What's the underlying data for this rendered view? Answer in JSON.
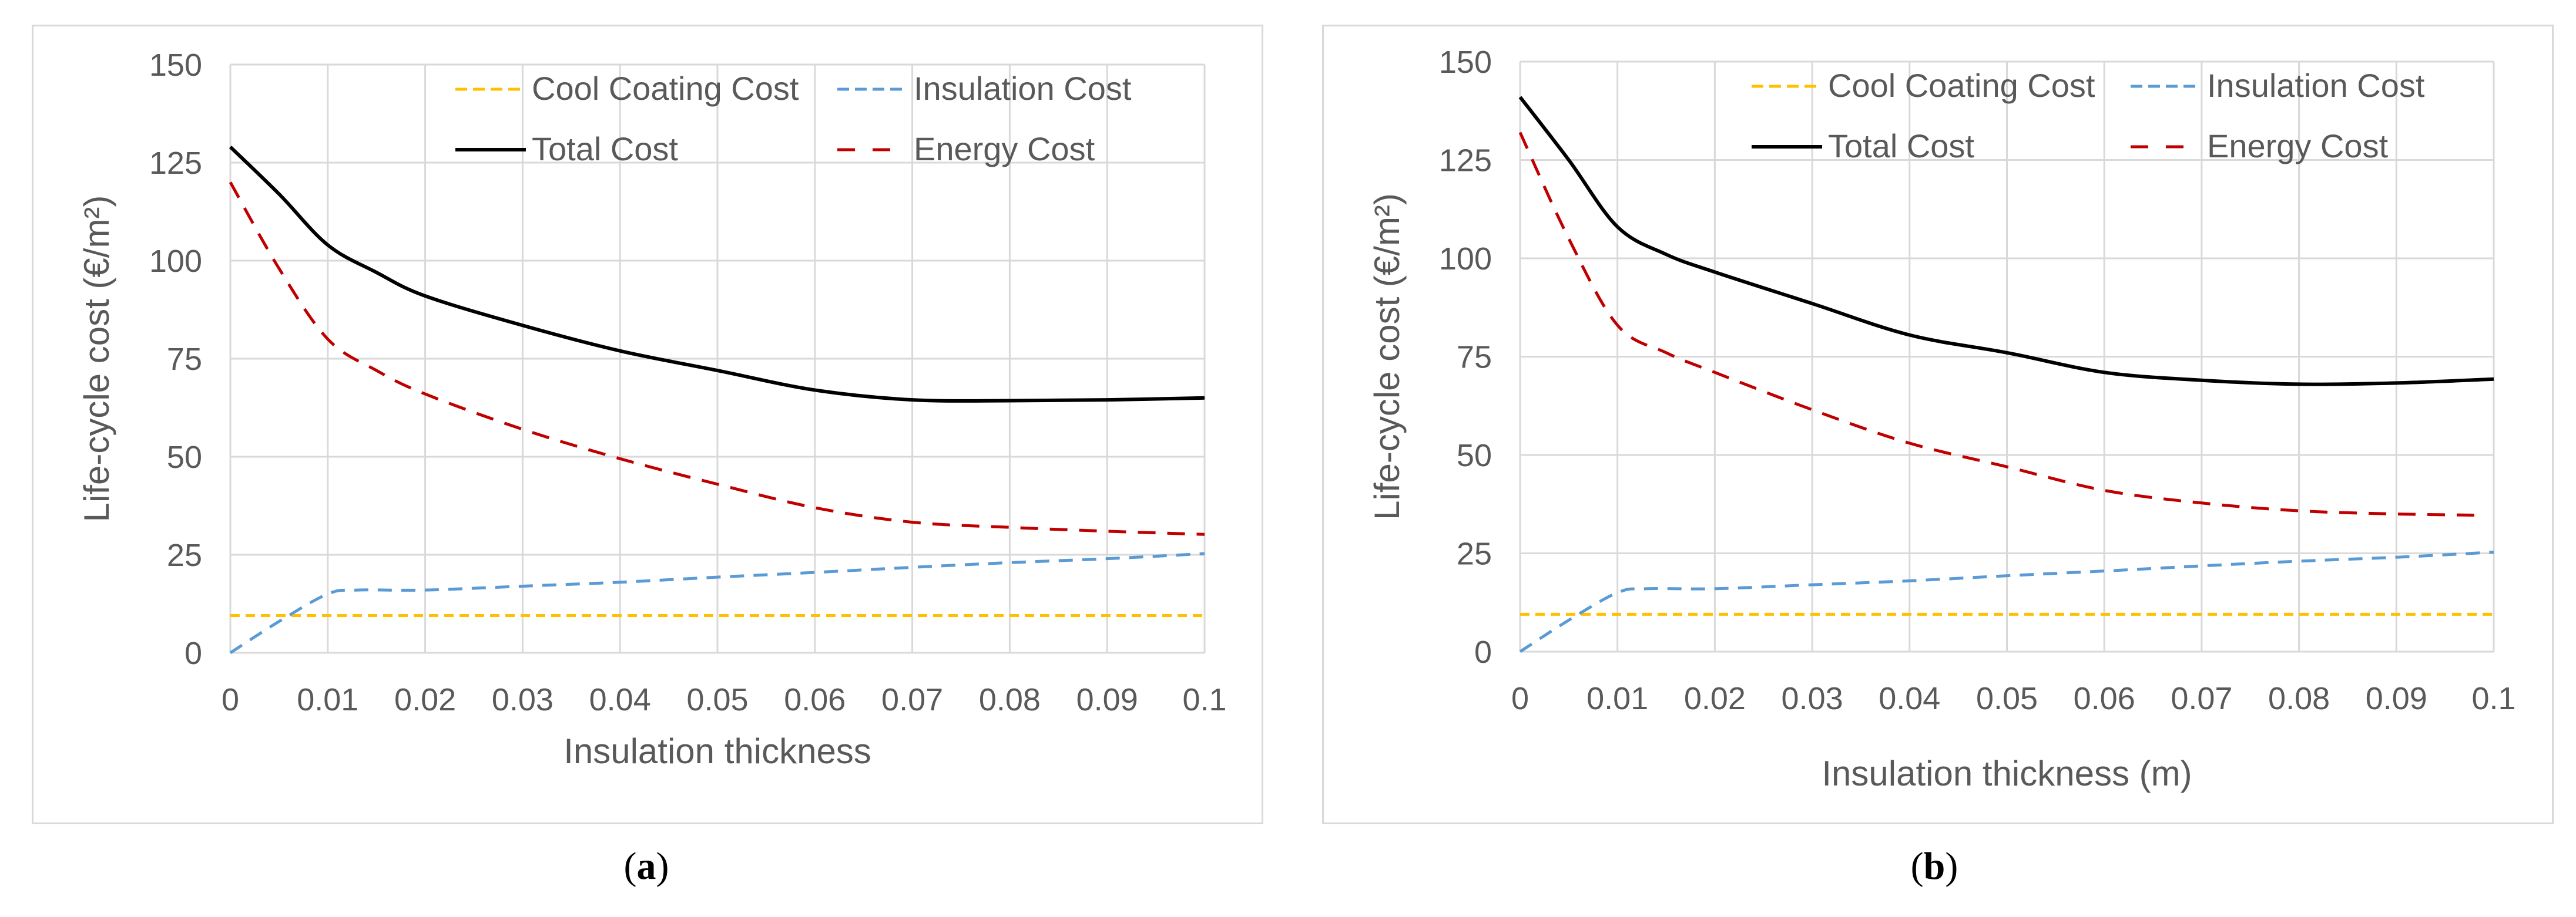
{
  "chart_data": [
    {
      "type": "line",
      "caption_letter": "a",
      "xlabel": "Insulation thickness",
      "ylabel": "Life-cycle cost (€/m²)",
      "xlim": [
        0,
        0.1
      ],
      "ylim": [
        0,
        150
      ],
      "xticks": [
        "0",
        "0.01",
        "0.02",
        "0.03",
        "0.04",
        "0.05",
        "0.06",
        "0.07",
        "0.08",
        "0.09",
        "0.1"
      ],
      "yticks": [
        "0",
        "25",
        "50",
        "75",
        "100",
        "125",
        "150"
      ],
      "grid": true,
      "legend_position": "top-right",
      "series": [
        {
          "name": "Cool Coating Cost",
          "color": "#FFC000",
          "style": "dashed",
          "x": [
            0,
            0.01,
            0.02,
            0.03,
            0.04,
            0.05,
            0.06,
            0.07,
            0.08,
            0.09,
            0.1
          ],
          "values": [
            9.5,
            9.5,
            9.5,
            9.5,
            9.5,
            9.5,
            9.5,
            9.5,
            9.5,
            9.5,
            9.5
          ]
        },
        {
          "name": "Insulation Cost",
          "color": "#5B9BD5",
          "style": "dashed",
          "x": [
            0,
            0.005,
            0.01,
            0.013,
            0.02,
            0.03,
            0.04,
            0.05,
            0.06,
            0.07,
            0.08,
            0.09,
            0.1
          ],
          "values": [
            0,
            8,
            15,
            16,
            16,
            17,
            18,
            19.3,
            20.5,
            21.8,
            23,
            24,
            25.3
          ]
        },
        {
          "name": "Total Cost",
          "color": "#000000",
          "style": "solid",
          "x": [
            0,
            0.005,
            0.01,
            0.015,
            0.02,
            0.03,
            0.04,
            0.05,
            0.06,
            0.07,
            0.08,
            0.09,
            0.1
          ],
          "values": [
            129,
            117,
            104,
            97,
            91,
            83.5,
            77,
            72,
            67,
            64.5,
            64.3,
            64.5,
            65
          ]
        },
        {
          "name": "Energy Cost",
          "color": "#C00000",
          "style": "dashed",
          "x": [
            0,
            0.005,
            0.01,
            0.015,
            0.02,
            0.03,
            0.04,
            0.05,
            0.06,
            0.07,
            0.08,
            0.09,
            0.1
          ],
          "values": [
            120,
            98,
            80,
            72,
            66,
            57,
            49.5,
            43,
            37,
            33.3,
            32,
            31,
            30.2
          ]
        }
      ]
    },
    {
      "type": "line",
      "caption_letter": "b",
      "xlabel": "Insulation thickness (m)",
      "ylabel": "Life-cycle cost (€/m²)",
      "xlim": [
        0,
        0.1
      ],
      "ylim": [
        0,
        150
      ],
      "xticks": [
        "0",
        "0.01",
        "0.02",
        "0.03",
        "0.04",
        "0.05",
        "0.06",
        "0.07",
        "0.08",
        "0.09",
        "0.1"
      ],
      "yticks": [
        "0",
        "25",
        "50",
        "75",
        "100",
        "125",
        "150"
      ],
      "grid": true,
      "legend_position": "top-right",
      "series": [
        {
          "name": "Cool Coating Cost",
          "color": "#FFC000",
          "style": "dashed",
          "x": [
            0,
            0.01,
            0.02,
            0.03,
            0.04,
            0.05,
            0.06,
            0.07,
            0.08,
            0.09,
            0.1
          ],
          "values": [
            9.5,
            9.5,
            9.5,
            9.5,
            9.5,
            9.5,
            9.5,
            9.5,
            9.5,
            9.5,
            9.5
          ]
        },
        {
          "name": "Insulation Cost",
          "color": "#5B9BD5",
          "style": "dashed",
          "x": [
            0,
            0.005,
            0.01,
            0.013,
            0.02,
            0.03,
            0.04,
            0.05,
            0.06,
            0.07,
            0.08,
            0.09,
            0.1
          ],
          "values": [
            0,
            8,
            15,
            16,
            16,
            17,
            18,
            19.3,
            20.5,
            21.8,
            23,
            24,
            25.3
          ]
        },
        {
          "name": "Total Cost",
          "color": "#000000",
          "style": "solid",
          "x": [
            0,
            0.005,
            0.01,
            0.015,
            0.02,
            0.03,
            0.04,
            0.05,
            0.06,
            0.07,
            0.08,
            0.09,
            0.1
          ],
          "values": [
            141,
            125,
            108,
            101,
            96.5,
            88.5,
            80.5,
            76,
            71,
            69,
            68,
            68.3,
            69.3
          ]
        },
        {
          "name": "Energy Cost",
          "color": "#C00000",
          "style": "dashed",
          "x": [
            0,
            0.005,
            0.01,
            0.015,
            0.02,
            0.03,
            0.04,
            0.05,
            0.06,
            0.07,
            0.08,
            0.09,
            0.098
          ],
          "values": [
            132,
            105,
            83,
            76,
            71,
            61.5,
            53,
            47,
            41,
            37.8,
            35.8,
            35,
            34.7
          ]
        }
      ]
    }
  ]
}
